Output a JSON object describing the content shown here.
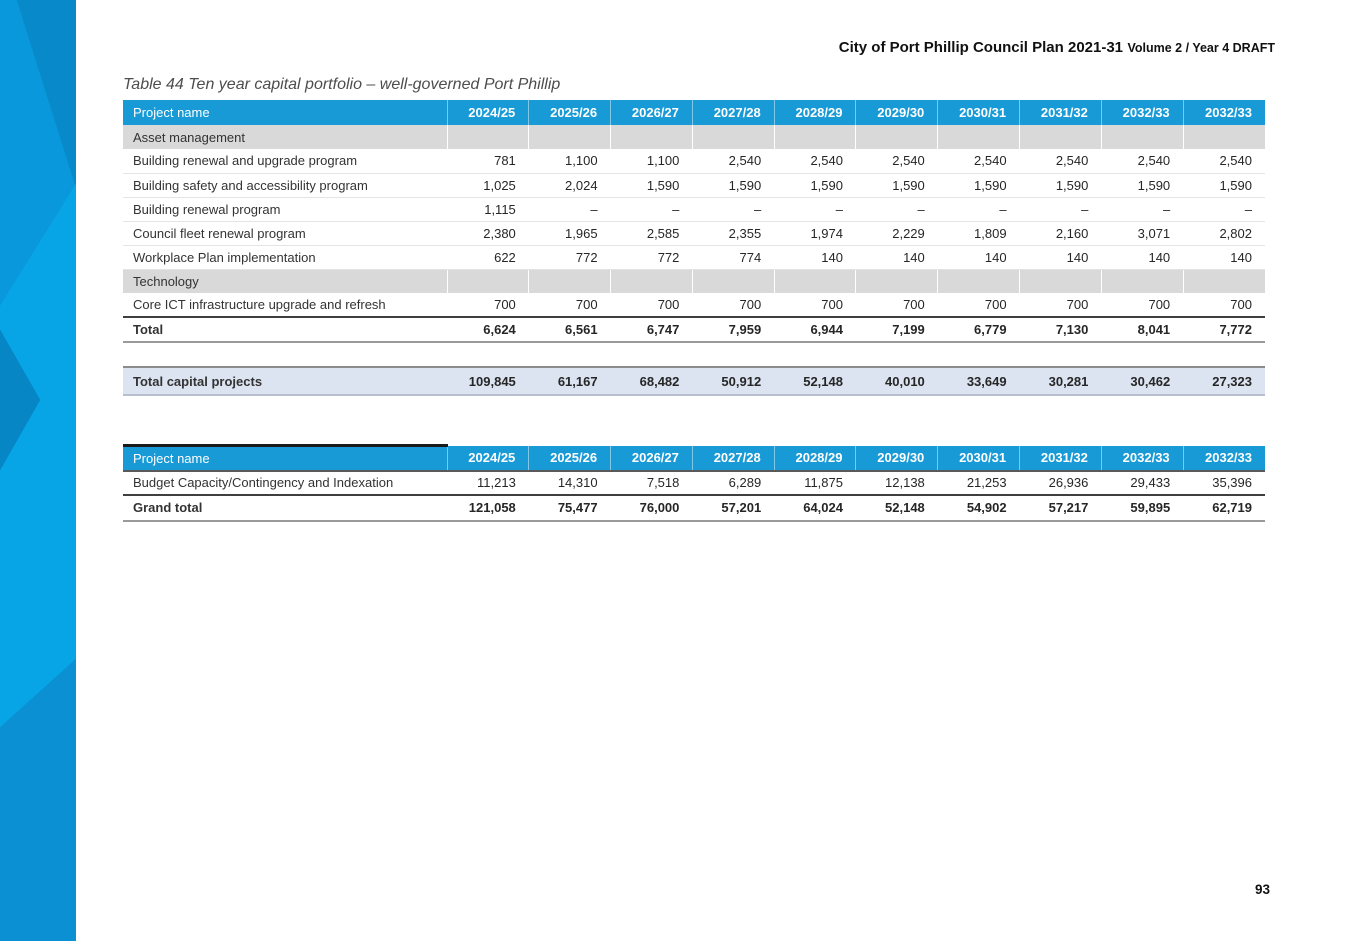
{
  "doc": {
    "header_title": "City of Port Phillip Council Plan 2021-31",
    "header_subtitle": "Volume 2 / Year 4 DRAFT",
    "page_number": "93"
  },
  "table_title": "Table 44 Ten year capital portfolio – well-governed Port Phillip",
  "years": [
    "2024/25",
    "2025/26",
    "2026/27",
    "2027/28",
    "2028/29",
    "2029/30",
    "2030/31",
    "2031/32",
    "2032/33",
    "2032/33"
  ],
  "main_table": {
    "project_name_header": "Project name",
    "rows": [
      {
        "type": "section",
        "label": "Asset management"
      },
      {
        "type": "data",
        "label": "Building renewal and upgrade program",
        "values": [
          "781",
          "1,100",
          "1,100",
          "2,540",
          "2,540",
          "2,540",
          "2,540",
          "2,540",
          "2,540",
          "2,540"
        ]
      },
      {
        "type": "data",
        "label": "Building safety and accessibility program",
        "values": [
          "1,025",
          "2,024",
          "1,590",
          "1,590",
          "1,590",
          "1,590",
          "1,590",
          "1,590",
          "1,590",
          "1,590"
        ]
      },
      {
        "type": "data",
        "label": "Building renewal program",
        "values": [
          "1,115",
          "–",
          "–",
          "–",
          "–",
          "–",
          "–",
          "–",
          "–",
          "–"
        ]
      },
      {
        "type": "data",
        "label": "Council fleet renewal program",
        "values": [
          "2,380",
          "1,965",
          "2,585",
          "2,355",
          "1,974",
          "2,229",
          "1,809",
          "2,160",
          "3,071",
          "2,802"
        ]
      },
      {
        "type": "data",
        "label": "Workplace Plan implementation",
        "values": [
          "622",
          "772",
          "772",
          "774",
          "140",
          "140",
          "140",
          "140",
          "140",
          "140"
        ]
      },
      {
        "type": "section",
        "label": "Technology"
      },
      {
        "type": "data",
        "label": "Core ICT infrastructure upgrade and refresh",
        "values": [
          "700",
          "700",
          "700",
          "700",
          "700",
          "700",
          "700",
          "700",
          "700",
          "700"
        ]
      },
      {
        "type": "total",
        "label": "Total",
        "values": [
          "6,624",
          "6,561",
          "6,747",
          "7,959",
          "6,944",
          "7,199",
          "6,779",
          "7,130",
          "8,041",
          "7,772"
        ]
      }
    ]
  },
  "total_capital_projects": {
    "label": "Total capital projects",
    "values": [
      "109,845",
      "61,167",
      "68,482",
      "50,912",
      "52,148",
      "40,010",
      "33,649",
      "30,281",
      "30,462",
      "27,323"
    ]
  },
  "summary_table": {
    "project_name_header": "Project name",
    "rows": [
      {
        "type": "data",
        "label": "Budget Capacity/Contingency and Indexation",
        "values": [
          "11,213",
          "14,310",
          "7,518",
          "6,289",
          "11,875",
          "12,138",
          "21,253",
          "26,936",
          "29,433",
          "35,396"
        ]
      },
      {
        "type": "grand_total",
        "label": "Grand total",
        "values": [
          "121,058",
          "75,477",
          "76,000",
          "57,201",
          "64,024",
          "52,148",
          "54,902",
          "57,217",
          "59,895",
          "62,719"
        ]
      }
    ]
  },
  "colors": {
    "header_blue": "#189AD6",
    "section_gray": "#D9D9D9",
    "highlight_lavender": "#DCE3F1",
    "sidebar_blue": "#0998DB"
  }
}
